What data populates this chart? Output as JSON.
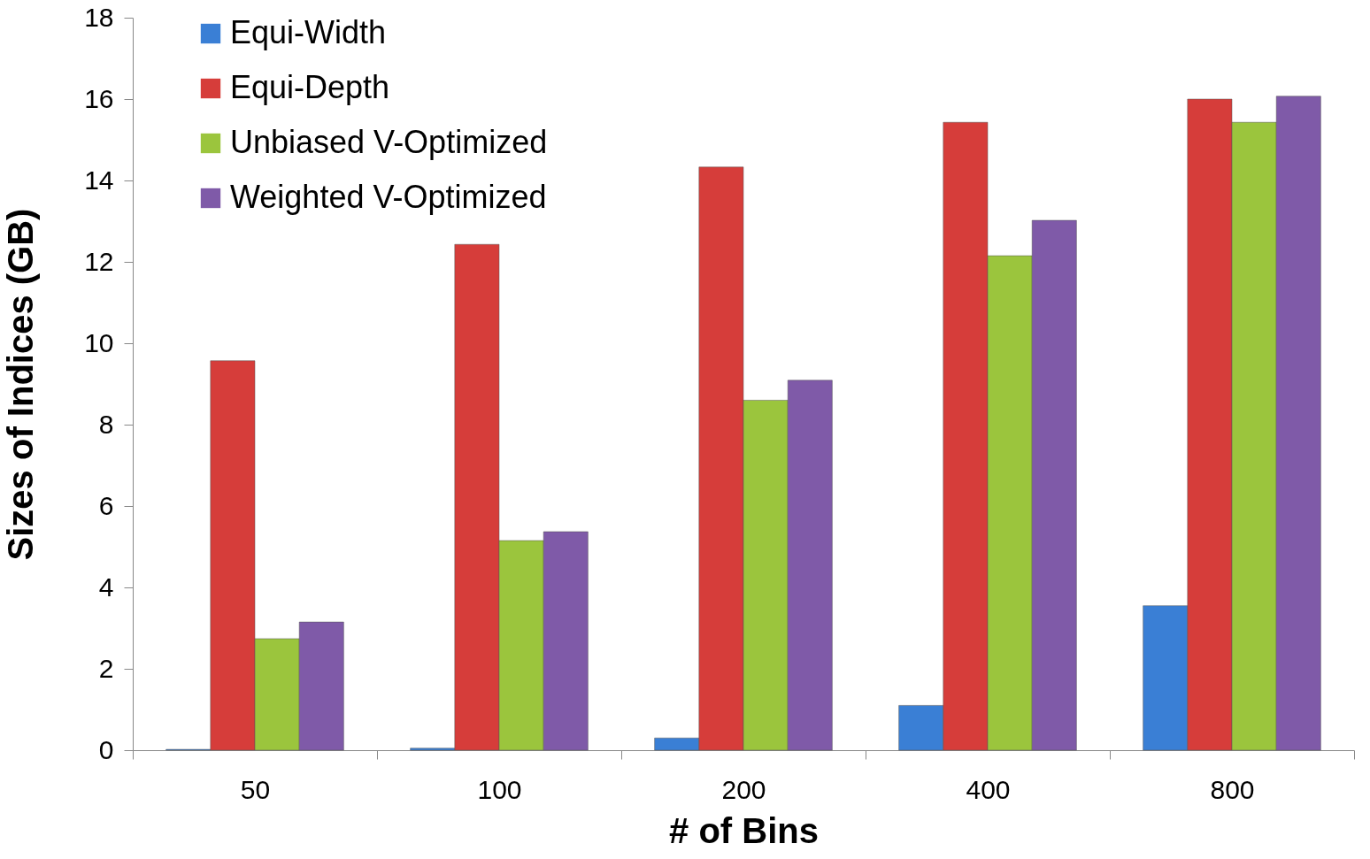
{
  "chart_data": {
    "type": "bar",
    "xlabel": "# of Bins",
    "ylabel": "Sizes of Indices (GB)",
    "categories": [
      "50",
      "100",
      "200",
      "400",
      "800"
    ],
    "series": [
      {
        "name": "Equi-Width",
        "color": "#3a7fd5",
        "values": [
          0.02,
          0.05,
          0.3,
          1.1,
          3.55
        ]
      },
      {
        "name": "Equi-Depth",
        "color": "#d63d3a",
        "values": [
          9.57,
          12.43,
          14.33,
          15.43,
          16.0
        ]
      },
      {
        "name": "Unbiased V-Optimized",
        "color": "#9bc53d",
        "values": [
          2.74,
          5.15,
          8.6,
          12.15,
          15.43
        ]
      },
      {
        "name": "Weighted V-Optimized",
        "color": "#7f5aa8",
        "values": [
          3.15,
          5.37,
          9.09,
          13.02,
          16.07
        ]
      }
    ],
    "ylim": [
      0,
      18
    ],
    "yticks": [
      0,
      2,
      4,
      6,
      8,
      10,
      12,
      14,
      16,
      18
    ],
    "grid": false,
    "legend": "top left"
  }
}
